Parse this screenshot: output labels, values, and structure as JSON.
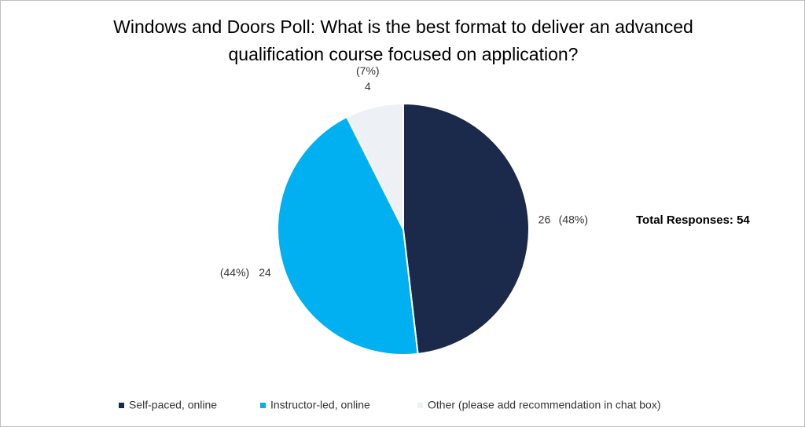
{
  "chart_data": {
    "type": "pie",
    "title": "Windows and Doors Poll: What is the best format to deliver an advanced qualification course focused on application?",
    "categories": [
      "Self-paced, online",
      "Instructor-led, online",
      "Other (please add recommendation in chat box)"
    ],
    "values": [
      26,
      24,
      4
    ],
    "percent_labels": [
      "(48%)",
      "(44%)",
      "(7%)"
    ],
    "colors": [
      "#1b2a4a",
      "#00b0f0",
      "#edf1f5"
    ],
    "annotation": "Total Responses: 54"
  }
}
